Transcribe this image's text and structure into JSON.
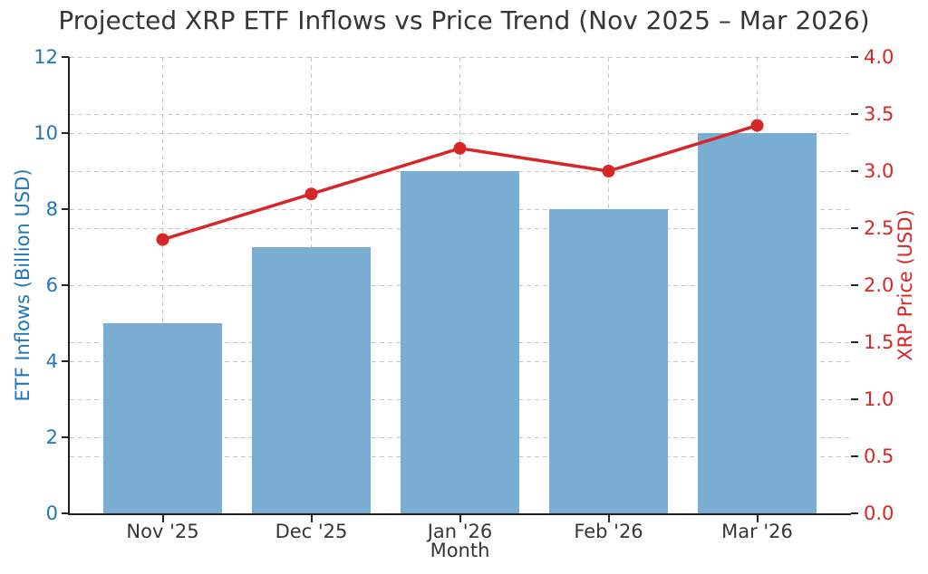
{
  "chart_data": {
    "type": "bar",
    "title": "Projected XRP ETF Inflows vs Price Trend (Nov 2025 – Mar 2026)",
    "xlabel": "Month",
    "ylabel_left": "ETF Inflows (Billion USD)",
    "ylabel_right": "XRP Price (USD)",
    "categories": [
      "Nov '25",
      "Dec '25",
      "Jan '26",
      "Feb '26",
      "Mar '26"
    ],
    "series": [
      {
        "name": "ETF Inflows",
        "type": "bar",
        "axis": "left",
        "values": [
          5,
          7,
          9,
          8,
          10
        ]
      },
      {
        "name": "XRP Price",
        "type": "line",
        "axis": "right",
        "values": [
          2.4,
          2.8,
          3.2,
          3.0,
          3.4
        ]
      }
    ],
    "ylim_left": [
      0,
      12
    ],
    "ylim_right": [
      0,
      4
    ],
    "yticks_left": {
      "values": [
        0,
        2,
        4,
        6,
        8,
        10,
        12
      ],
      "labels": [
        "0",
        "2",
        "4",
        "6",
        "8",
        "10",
        "12"
      ]
    },
    "yticks_right": {
      "values": [
        0,
        0.5,
        1,
        1.5,
        2,
        2.5,
        3,
        3.5,
        4
      ],
      "labels": [
        "0.0",
        "0.5",
        "1.0",
        "1.5",
        "2.0",
        "2.5",
        "3.0",
        "3.5",
        "4.0"
      ]
    },
    "grid": true,
    "legend": false,
    "colors": {
      "bar": "#79aed2",
      "line": "#d62728",
      "marker": "#d62728",
      "left_axis_text": "#1f77b4",
      "right_axis_text": "#d62728",
      "grid": "#c6c6c6",
      "spine": "#1f1f1f",
      "title_text": "#363636"
    }
  }
}
